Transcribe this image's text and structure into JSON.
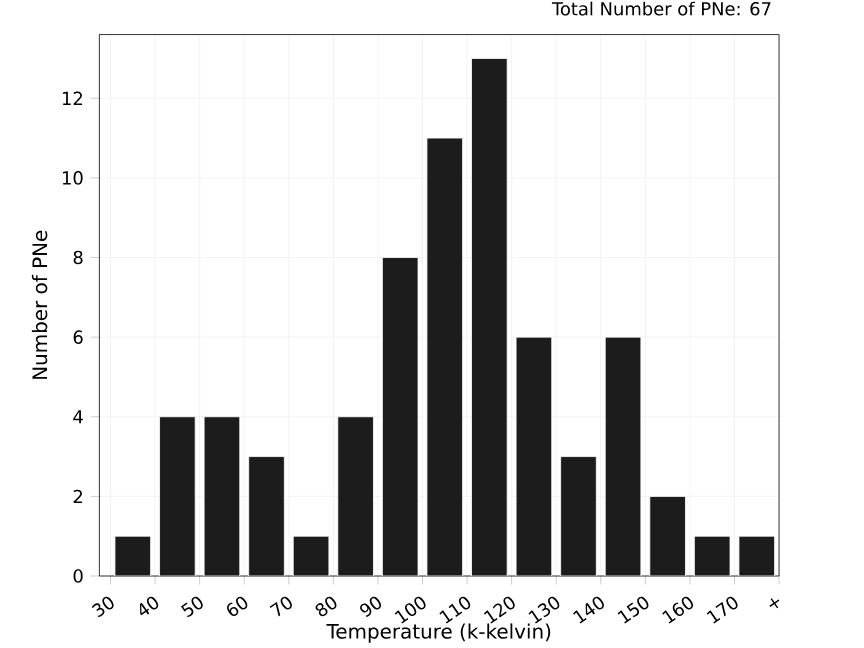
{
  "chart_data": {
    "type": "bar",
    "title": "Total Number of PNe: 67",
    "xlabel": "Temperature (k-kelvin)",
    "ylabel": "Number of PNe",
    "categories": [
      "30",
      "40",
      "50",
      "60",
      "70",
      "80",
      "90",
      "100",
      "110",
      "120",
      "130",
      "140",
      "150",
      "160",
      "170",
      "+"
    ],
    "values": [
      1,
      4,
      4,
      3,
      1,
      4,
      8,
      11,
      13,
      6,
      3,
      6,
      2,
      1,
      1,
      null
    ],
    "color": "#1c1c1c",
    "ylim": [
      0,
      13.6
    ],
    "yticks": [
      0,
      2,
      4,
      6,
      8,
      10,
      12
    ],
    "grid": true
  }
}
